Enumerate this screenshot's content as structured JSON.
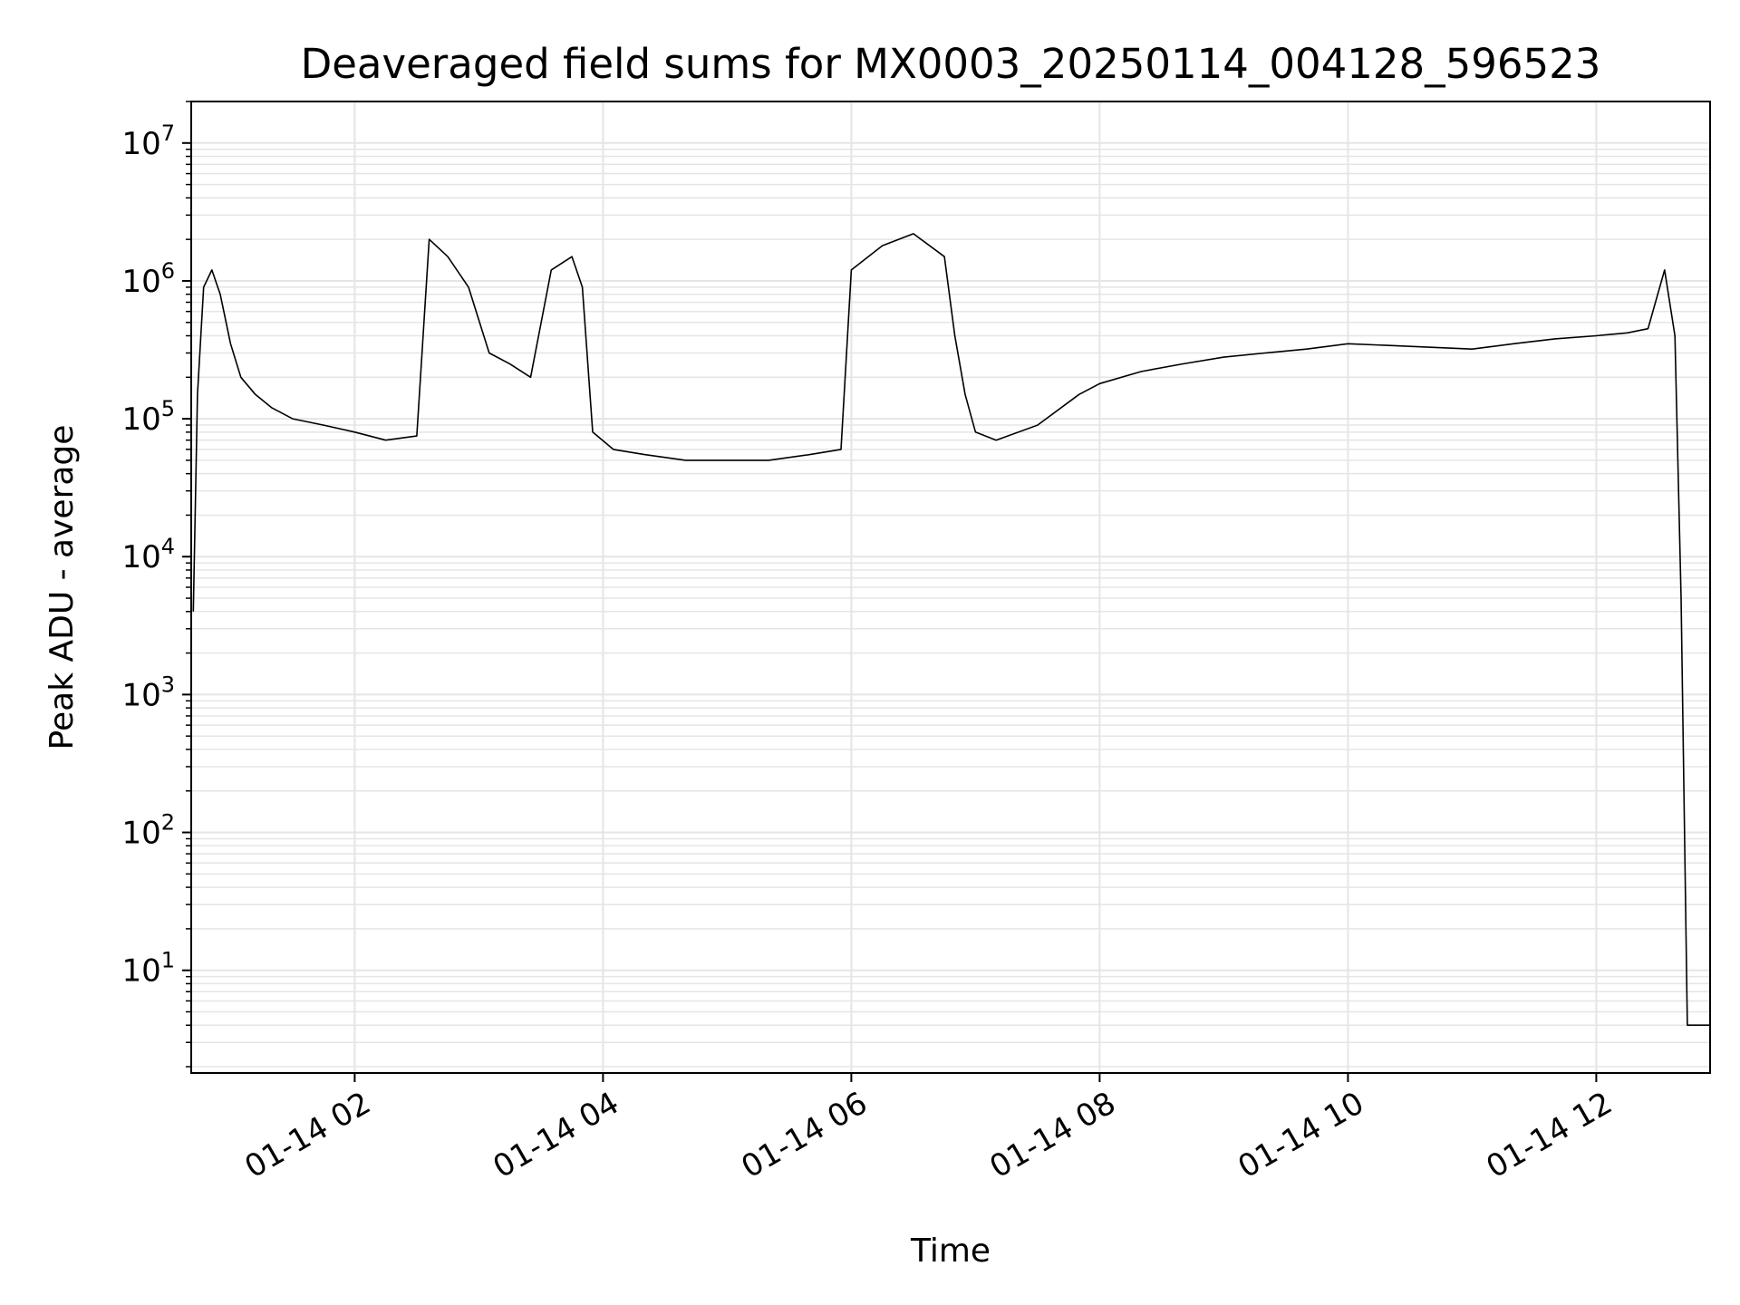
{
  "chart_data": {
    "type": "line",
    "title": "Deaveraged field sums for MX0003_20250114_004128_596523",
    "xlabel": "Time",
    "ylabel": "Peak ADU - average",
    "yscale": "log",
    "grid": true,
    "line_color": "#000000",
    "grid_color": "#e5e5e5",
    "xlim": [
      "2025-01-14 00:41",
      "2025-01-14 12:55"
    ],
    "ylim": [
      1.8,
      20000000
    ],
    "x_ticks": [
      {
        "value": "2025-01-14 02:00",
        "label": "01-14 02"
      },
      {
        "value": "2025-01-14 04:00",
        "label": "01-14 04"
      },
      {
        "value": "2025-01-14 06:00",
        "label": "01-14 06"
      },
      {
        "value": "2025-01-14 08:00",
        "label": "01-14 08"
      },
      {
        "value": "2025-01-14 10:00",
        "label": "01-14 10"
      },
      {
        "value": "2025-01-14 12:00",
        "label": "01-14 12"
      }
    ],
    "y_ticks": [
      {
        "value": 10,
        "base": "10",
        "exp": "1"
      },
      {
        "value": 100,
        "base": "10",
        "exp": "2"
      },
      {
        "value": 1000,
        "base": "10",
        "exp": "3"
      },
      {
        "value": 10000,
        "base": "10",
        "exp": "4"
      },
      {
        "value": 100000,
        "base": "10",
        "exp": "5"
      },
      {
        "value": 1000000,
        "base": "10",
        "exp": "6"
      },
      {
        "value": 10000000,
        "base": "10",
        "exp": "7"
      }
    ],
    "series": [
      {
        "x": [
          "2025-01-14 00:42",
          "2025-01-14 00:44",
          "2025-01-14 00:47",
          "2025-01-14 00:51",
          "2025-01-14 00:55",
          "2025-01-14 01:00",
          "2025-01-14 01:05",
          "2025-01-14 01:12",
          "2025-01-14 01:20",
          "2025-01-14 01:30",
          "2025-01-14 01:45",
          "2025-01-14 02:00",
          "2025-01-14 02:15",
          "2025-01-14 02:30",
          "2025-01-14 02:36",
          "2025-01-14 02:45",
          "2025-01-14 02:55",
          "2025-01-14 03:05",
          "2025-01-14 03:15",
          "2025-01-14 03:25",
          "2025-01-14 03:35",
          "2025-01-14 03:45",
          "2025-01-14 03:50",
          "2025-01-14 03:55",
          "2025-01-14 04:05",
          "2025-01-14 04:20",
          "2025-01-14 04:40",
          "2025-01-14 05:00",
          "2025-01-14 05:20",
          "2025-01-14 05:40",
          "2025-01-14 05:55",
          "2025-01-14 06:00",
          "2025-01-14 06:15",
          "2025-01-14 06:30",
          "2025-01-14 06:45",
          "2025-01-14 06:50",
          "2025-01-14 06:55",
          "2025-01-14 07:00",
          "2025-01-14 07:10",
          "2025-01-14 07:30",
          "2025-01-14 07:50",
          "2025-01-14 08:00",
          "2025-01-14 08:20",
          "2025-01-14 08:40",
          "2025-01-14 09:00",
          "2025-01-14 09:20",
          "2025-01-14 09:40",
          "2025-01-14 10:00",
          "2025-01-14 10:20",
          "2025-01-14 10:40",
          "2025-01-14 11:00",
          "2025-01-14 11:20",
          "2025-01-14 11:40",
          "2025-01-14 12:00",
          "2025-01-14 12:15",
          "2025-01-14 12:25",
          "2025-01-14 12:33",
          "2025-01-14 12:38",
          "2025-01-14 12:41",
          "2025-01-14 12:44",
          "2025-01-14 12:55"
        ],
        "y": [
          4000,
          150000,
          900000,
          1200000,
          800000,
          350000,
          200000,
          150000,
          120000,
          100000,
          90000,
          80000,
          70000,
          75000,
          2000000,
          1500000,
          900000,
          300000,
          250000,
          200000,
          1200000,
          1500000,
          900000,
          80000,
          60000,
          55000,
          50000,
          50000,
          50000,
          55000,
          60000,
          1200000,
          1800000,
          2200000,
          1500000,
          400000,
          150000,
          80000,
          70000,
          90000,
          150000,
          180000,
          220000,
          250000,
          280000,
          300000,
          320000,
          350000,
          340000,
          330000,
          320000,
          350000,
          380000,
          400000,
          420000,
          450000,
          1200000,
          400000,
          5000,
          4,
          4
        ]
      }
    ]
  }
}
